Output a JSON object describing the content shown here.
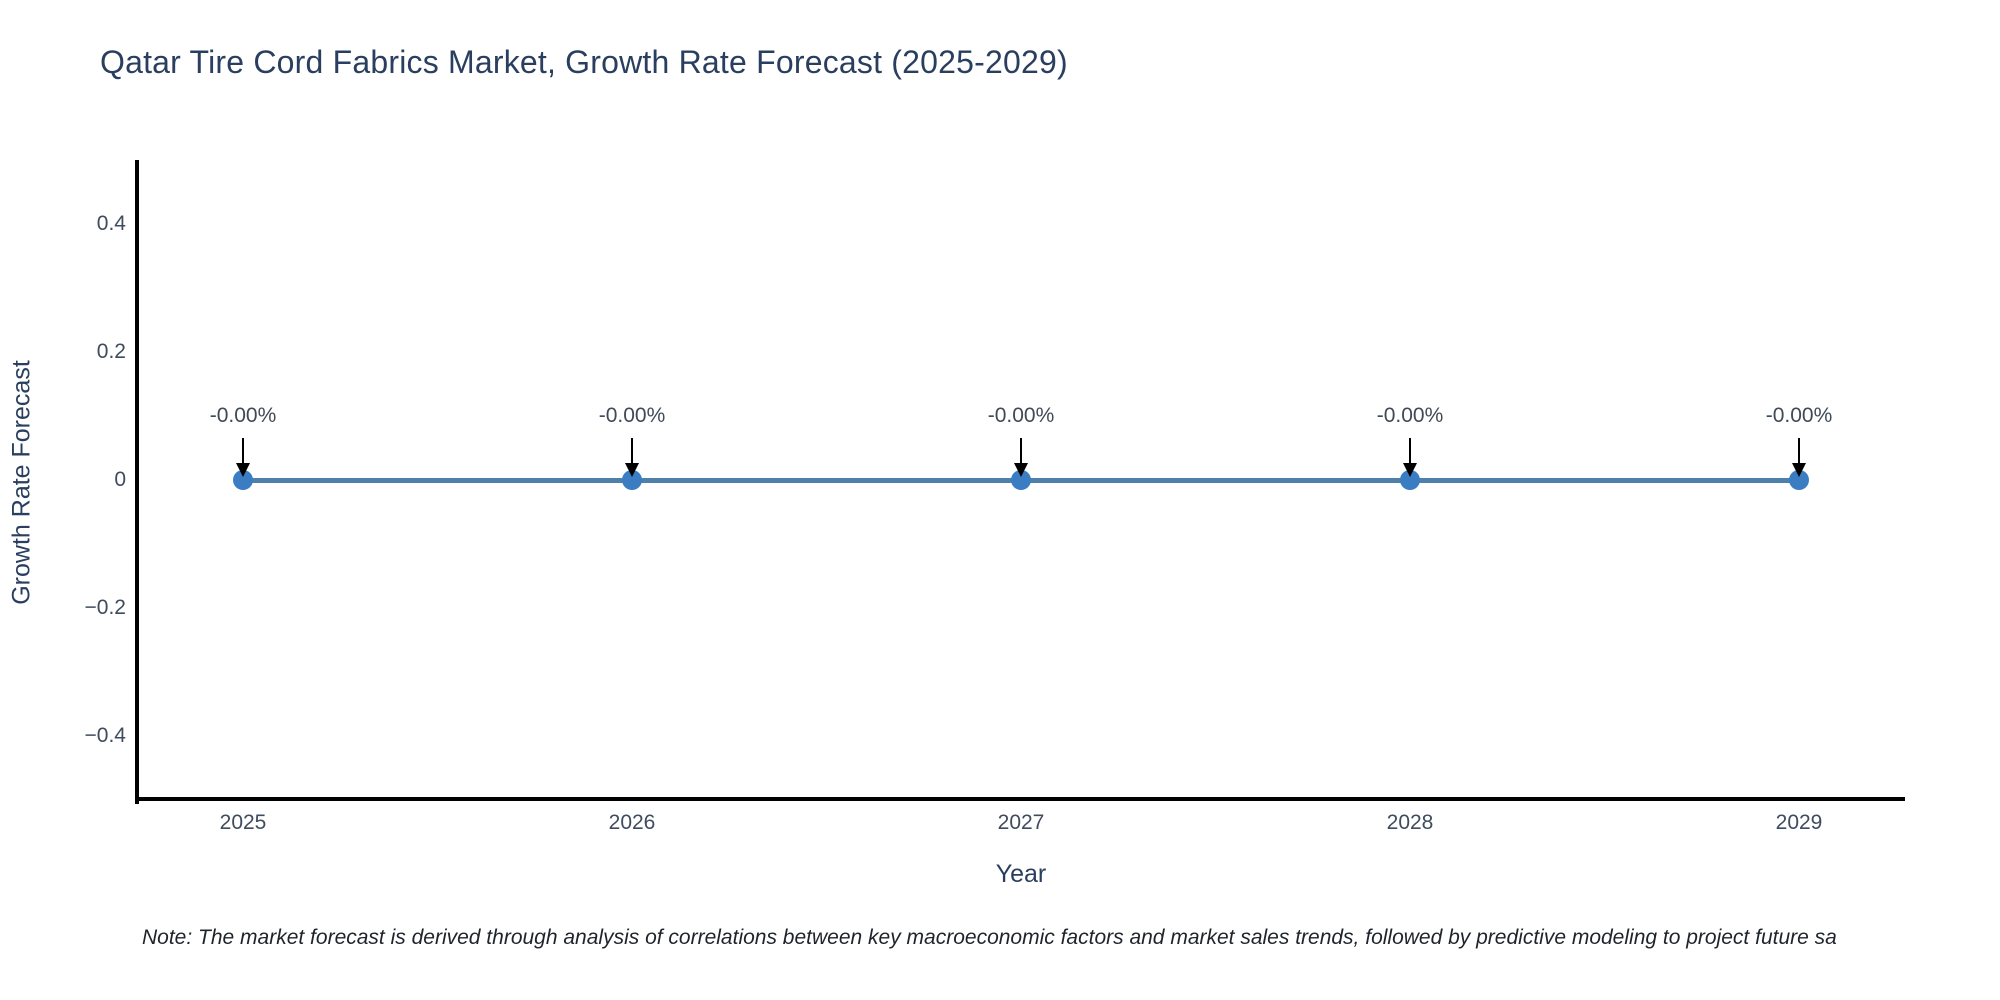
{
  "chart_data": {
    "type": "line",
    "title": "Qatar Tire Cord Fabrics Market, Growth Rate Forecast (2025-2029)",
    "xlabel": "Year",
    "ylabel": "Growth Rate Forecast",
    "x": [
      2025,
      2026,
      2027,
      2028,
      2029
    ],
    "x_tick_labels": [
      "2025",
      "2026",
      "2027",
      "2028",
      "2029"
    ],
    "series": [
      {
        "name": "Growth Rate Forecast",
        "values": [
          0,
          0,
          0,
          0,
          0
        ],
        "point_labels": [
          "-0.00%",
          "-0.00%",
          "-0.00%",
          "-0.00%",
          "-0.00%"
        ]
      }
    ],
    "y_ticks": [
      0.4,
      0.2,
      0,
      -0.2,
      -0.4
    ],
    "y_tick_labels": [
      "0.4",
      "0.2",
      "0",
      "−0.2",
      "−0.4"
    ],
    "ylim": [
      -0.5,
      0.5
    ],
    "grid": false,
    "legend": false,
    "colors": {
      "line": "#4e80ab",
      "marker": "#3b7dc2",
      "axis_line": "#000000",
      "annotation_arrow": "#000000",
      "title_text": "#2a3f5f",
      "tick_text": "#3e4c5e"
    }
  },
  "footnote": "Note: The market forecast is derived through analysis of correlations between key macroeconomic factors and market sales trends, followed by predictive modeling to project future sa"
}
